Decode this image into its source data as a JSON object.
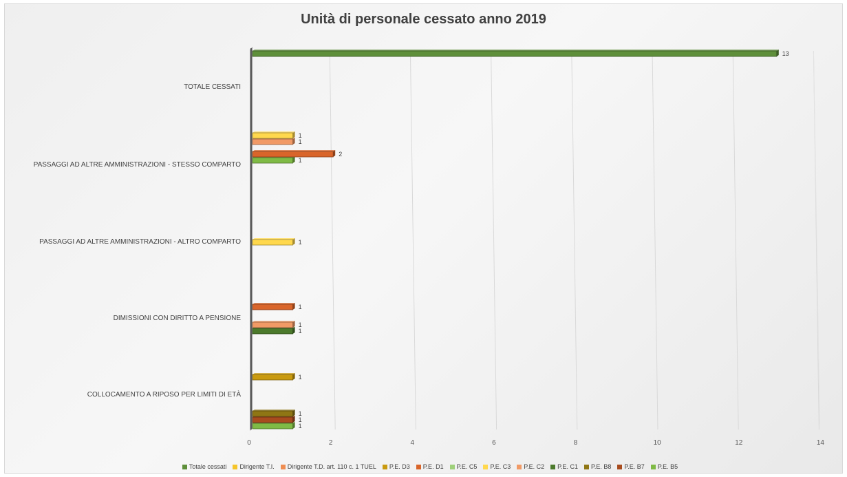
{
  "chart_data": {
    "type": "bar",
    "orientation": "horizontal",
    "title": "Unità di personale cessato anno 2019",
    "categories": [
      "COLLOCAMENTO  A RIPOSO PER LIMITI DI ETÀ",
      "DIMISSIONI CON DIRITTO A PENSIONE",
      "PASSAGGI AD ALTRE AMMINISTRAZIONI - ALTRO COMPARTO",
      "PASSAGGI AD ALTRE AMMINISTRAZIONI - STESSO COMPARTO",
      "TOTALE CESSATI"
    ],
    "xlim": [
      0,
      14
    ],
    "xticks": [
      "0",
      "2",
      "4",
      "6",
      "8",
      "10",
      "12",
      "14"
    ],
    "grid": true,
    "legend_position": "bottom",
    "series": [
      {
        "name": "P.E. B5",
        "color": "#7fba45",
        "values": [
          1,
          null,
          null,
          1,
          null
        ]
      },
      {
        "name": "P.E. B7",
        "color": "#a84b1e",
        "values": [
          1,
          null,
          null,
          null,
          null
        ]
      },
      {
        "name": "P.E. B8",
        "color": "#8f7614",
        "values": [
          1,
          null,
          null,
          null,
          null
        ]
      },
      {
        "name": "P.E. C1",
        "color": "#4c7a2c",
        "values": [
          null,
          1,
          null,
          null,
          null
        ]
      },
      {
        "name": "P.E. C2",
        "color": "#f19a66",
        "values": [
          null,
          1,
          null,
          1,
          null
        ]
      },
      {
        "name": "P.E. C3",
        "color": "#ffd84d",
        "values": [
          null,
          null,
          1,
          1,
          null
        ]
      },
      {
        "name": "P.E. C5",
        "color": "#9fd07a",
        "values": [
          null,
          null,
          null,
          null,
          null
        ]
      },
      {
        "name": "P.E. D1",
        "color": "#d9652a",
        "values": [
          null,
          1,
          null,
          2,
          null
        ]
      },
      {
        "name": "P.E. D3",
        "color": "#c99a10",
        "values": [
          1,
          null,
          null,
          null,
          null
        ]
      },
      {
        "name": "Dirigente T.D. art. 110 c. 1 TUEL",
        "color": "#ef8d52",
        "values": [
          null,
          null,
          null,
          null,
          null
        ]
      },
      {
        "name": "Dirigente T.I.",
        "color": "#f5c52a",
        "values": [
          null,
          null,
          null,
          null,
          null
        ]
      },
      {
        "name": "Totale cessati",
        "color": "#5e8f3a",
        "values": [
          null,
          null,
          null,
          null,
          13
        ]
      }
    ],
    "legend_order": [
      "Totale cessati",
      "Dirigente T.I.",
      "Dirigente T.D. art. 110 c. 1 TUEL",
      "P.E. D3",
      "P.E. D1",
      "P.E. C5",
      "P.E. C3",
      "P.E. C2",
      "P.E. C1",
      "P.E. B8",
      "P.E. B7",
      "P.E. B5"
    ]
  }
}
